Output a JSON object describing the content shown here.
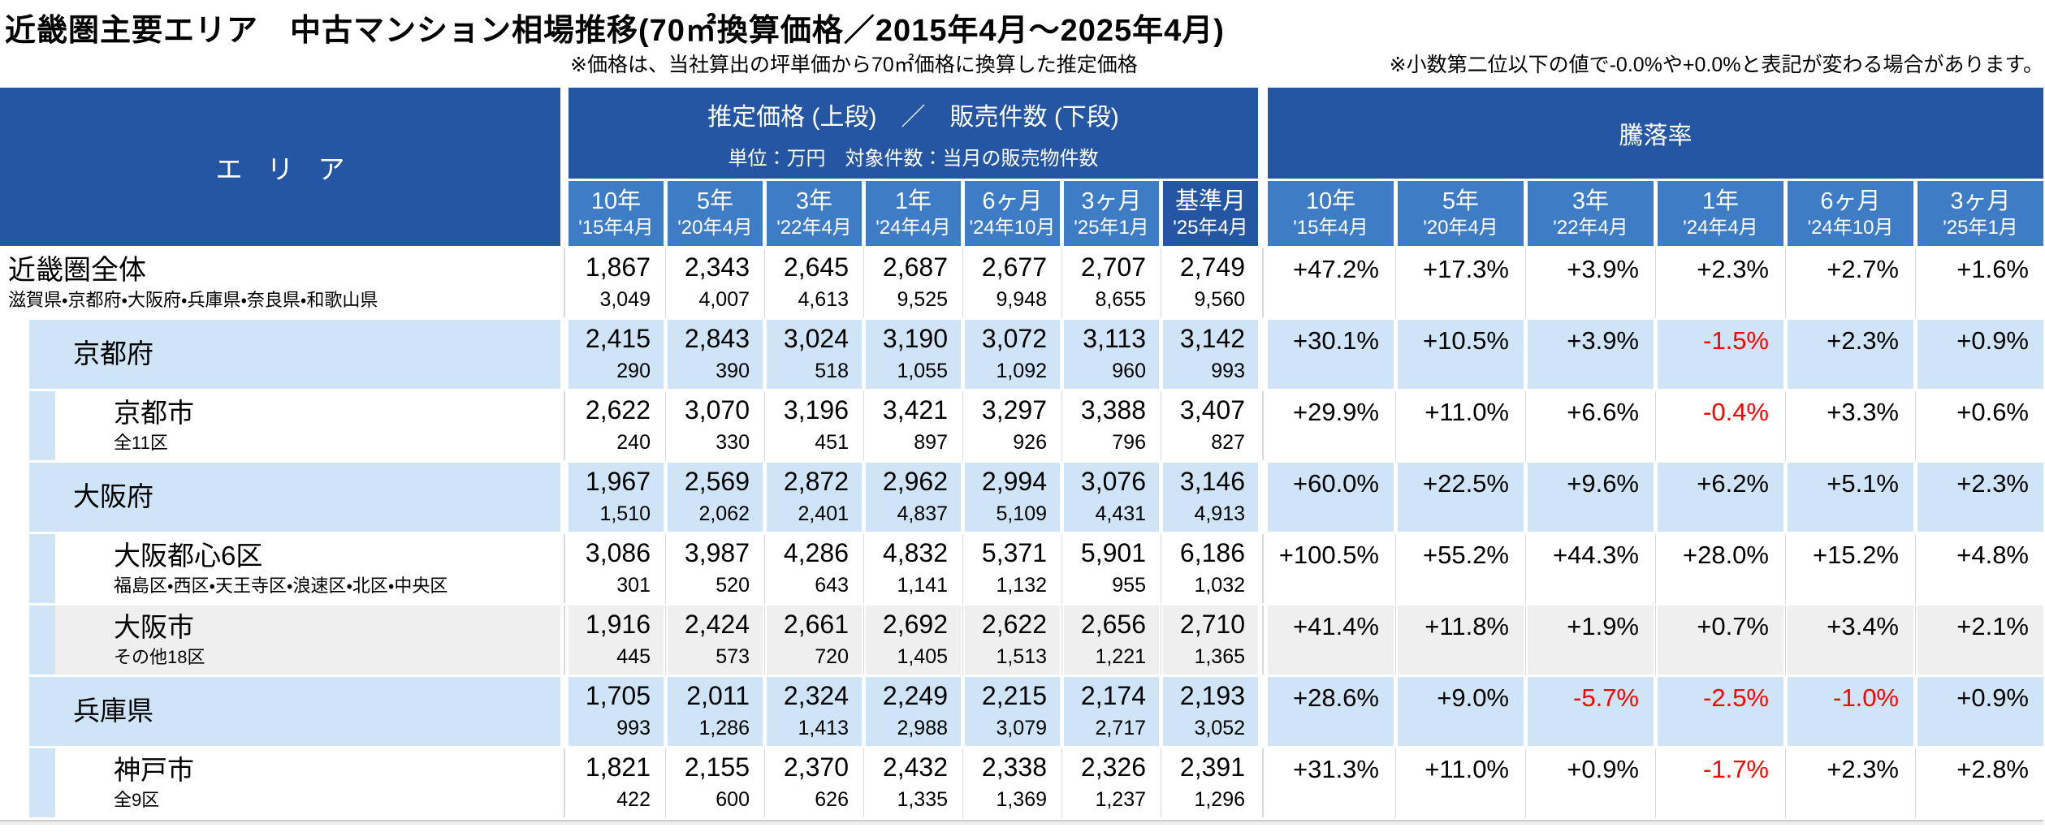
{
  "title": "近畿圏主要エリア　中古マンション相場推移(70㎡換算価格／2015年4月～2025年4月)",
  "notes": {
    "price_basis": "※価格は、当社算出の坪単価から70㎡価格に換算した推定価格",
    "rounding": "※小数第二位以下の値で-0.0%や+0.0%と表記が変わる場合があります。"
  },
  "header": {
    "area_label": "エリア",
    "price_group_title": "推定価格 (上段)　／　販売件数 (下段)",
    "price_group_subtitle": "単位：万円　対象件数：当月の販売物件数",
    "change_group_title": "騰落率"
  },
  "colors": {
    "header-dark": "#2456A3",
    "header-mid": "#3E7CC6",
    "row-blue": "#CFE4F6",
    "row-gray": "#EFEFEF",
    "negative-red": "#FF0000",
    "grid-line": "#D9D9D9"
  },
  "chart_data": {
    "type": "table",
    "title": "近畿圏主要エリア　中古マンション相場推移(70㎡換算価格／2015年4月～2025年4月)",
    "price_unit": "万円",
    "periods": [
      {
        "label": "10年",
        "date": "'15年4月",
        "is_base_month": false
      },
      {
        "label": "5年",
        "date": "'20年4月",
        "is_base_month": false
      },
      {
        "label": "3年",
        "date": "'22年4月",
        "is_base_month": false
      },
      {
        "label": "1年",
        "date": "'24年4月",
        "is_base_month": false
      },
      {
        "label": "6ヶ月",
        "date": "'24年10月",
        "is_base_month": false
      },
      {
        "label": "3ヶ月",
        "date": "'25年1月",
        "is_base_month": false
      },
      {
        "label": "基準月",
        "date": "'25年4月",
        "is_base_month": true
      }
    ],
    "rows": [
      {
        "name": "近畿圏全体",
        "coverage": "滋賀県・京都府・大阪府・兵庫県・奈良県・和歌山県",
        "level": 0,
        "bg": "white",
        "prices": [
          "1,867",
          "2,343",
          "2,645",
          "2,687",
          "2,677",
          "2,707",
          "2,749"
        ],
        "listings": [
          "3,049",
          "4,007",
          "4,613",
          "9,525",
          "9,948",
          "8,655",
          "9,560"
        ],
        "changes": [
          "+47.2%",
          "+17.3%",
          "+3.9%",
          "+2.3%",
          "+2.7%",
          "+1.6%"
        ]
      },
      {
        "name": "京都府",
        "coverage": "",
        "level": 1,
        "bg": "blue",
        "prices": [
          "2,415",
          "2,843",
          "3,024",
          "3,190",
          "3,072",
          "3,113",
          "3,142"
        ],
        "listings": [
          "290",
          "390",
          "518",
          "1,055",
          "1,092",
          "960",
          "993"
        ],
        "changes": [
          "+30.1%",
          "+10.5%",
          "+3.9%",
          "-1.5%",
          "+2.3%",
          "+0.9%"
        ]
      },
      {
        "name": "京都市",
        "coverage": "全11区",
        "level": 2,
        "bg": "white",
        "prices": [
          "2,622",
          "3,070",
          "3,196",
          "3,421",
          "3,297",
          "3,388",
          "3,407"
        ],
        "listings": [
          "240",
          "330",
          "451",
          "897",
          "926",
          "796",
          "827"
        ],
        "changes": [
          "+29.9%",
          "+11.0%",
          "+6.6%",
          "-0.4%",
          "+3.3%",
          "+0.6%"
        ]
      },
      {
        "name": "大阪府",
        "coverage": "",
        "level": 1,
        "bg": "blue",
        "prices": [
          "1,967",
          "2,569",
          "2,872",
          "2,962",
          "2,994",
          "3,076",
          "3,146"
        ],
        "listings": [
          "1,510",
          "2,062",
          "2,401",
          "4,837",
          "5,109",
          "4,431",
          "4,913"
        ],
        "changes": [
          "+60.0%",
          "+22.5%",
          "+9.6%",
          "+6.2%",
          "+5.1%",
          "+2.3%"
        ]
      },
      {
        "name": "大阪都心6区",
        "coverage": "福島区・西区・天王寺区・浪速区・北区・中央区",
        "level": 2,
        "bg": "white",
        "prices": [
          "3,086",
          "3,987",
          "4,286",
          "4,832",
          "5,371",
          "5,901",
          "6,186"
        ],
        "listings": [
          "301",
          "520",
          "643",
          "1,141",
          "1,132",
          "955",
          "1,032"
        ],
        "changes": [
          "+100.5%",
          "+55.2%",
          "+44.3%",
          "+28.0%",
          "+15.2%",
          "+4.8%"
        ]
      },
      {
        "name": "大阪市",
        "coverage": "その他18区",
        "level": 2,
        "bg": "gray",
        "prices": [
          "1,916",
          "2,424",
          "2,661",
          "2,692",
          "2,622",
          "2,656",
          "2,710"
        ],
        "listings": [
          "445",
          "573",
          "720",
          "1,405",
          "1,513",
          "1,221",
          "1,365"
        ],
        "changes": [
          "+41.4%",
          "+11.8%",
          "+1.9%",
          "+0.7%",
          "+3.4%",
          "+2.1%"
        ]
      },
      {
        "name": "兵庫県",
        "coverage": "",
        "level": 1,
        "bg": "blue",
        "prices": [
          "1,705",
          "2,011",
          "2,324",
          "2,249",
          "2,215",
          "2,174",
          "2,193"
        ],
        "listings": [
          "993",
          "1,286",
          "1,413",
          "2,988",
          "3,079",
          "2,717",
          "3,052"
        ],
        "changes": [
          "+28.6%",
          "+9.0%",
          "-5.7%",
          "-2.5%",
          "-1.0%",
          "+0.9%"
        ]
      },
      {
        "name": "神戸市",
        "coverage": "全9区",
        "level": 2,
        "bg": "white",
        "prices": [
          "1,821",
          "2,155",
          "2,370",
          "2,432",
          "2,338",
          "2,326",
          "2,391"
        ],
        "listings": [
          "422",
          "600",
          "626",
          "1,335",
          "1,369",
          "1,237",
          "1,296"
        ],
        "changes": [
          "+31.3%",
          "+11.0%",
          "+0.9%",
          "-1.7%",
          "+2.3%",
          "+2.8%"
        ]
      }
    ]
  }
}
